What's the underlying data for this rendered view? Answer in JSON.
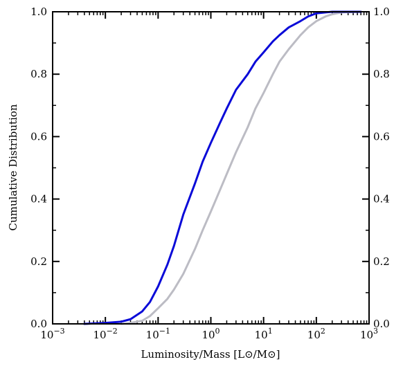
{
  "chart_data": {
    "type": "line",
    "title": "",
    "xlabel": "Luminosity/Mass [L⊙/M⊙]",
    "ylabel": "Cumulative Distribution",
    "xscale": "log",
    "xlim": [
      0.001,
      1000
    ],
    "ylim": [
      0.0,
      1.0
    ],
    "grid": false,
    "legend": "none",
    "x_ticks": [
      {
        "base": "10",
        "exp": "−3",
        "value": 0.001
      },
      {
        "base": "10",
        "exp": "−2",
        "value": 0.01
      },
      {
        "base": "10",
        "exp": "−1",
        "value": 0.1
      },
      {
        "base": "10",
        "exp": "0",
        "value": 1
      },
      {
        "base": "10",
        "exp": "1",
        "value": 10
      },
      {
        "base": "10",
        "exp": "2",
        "value": 100
      },
      {
        "base": "10",
        "exp": "3",
        "value": 1000
      }
    ],
    "y_ticks": [
      "0.0",
      "0.2",
      "0.4",
      "0.6",
      "0.8",
      "1.0"
    ],
    "series": [
      {
        "color": "#0a0ad8",
        "x": [
          0.004,
          0.01,
          0.02,
          0.03,
          0.05,
          0.07,
          0.1,
          0.15,
          0.2,
          0.3,
          0.5,
          0.7,
          1.0,
          1.5,
          2.0,
          3.0,
          5.0,
          7.0,
          10,
          15,
          20,
          30,
          50,
          70,
          100,
          150,
          200,
          300,
          700
        ],
        "y": [
          0.0,
          0.003,
          0.007,
          0.015,
          0.04,
          0.07,
          0.12,
          0.19,
          0.25,
          0.35,
          0.45,
          0.52,
          0.58,
          0.645,
          0.69,
          0.75,
          0.8,
          0.84,
          0.87,
          0.905,
          0.925,
          0.95,
          0.97,
          0.985,
          0.995,
          0.998,
          1.0,
          1.0,
          1.0
        ]
      },
      {
        "color": "#bcbcc4",
        "x": [
          0.02,
          0.03,
          0.05,
          0.07,
          0.1,
          0.15,
          0.2,
          0.3,
          0.5,
          0.7,
          1.0,
          1.5,
          2.0,
          3.0,
          5.0,
          7.0,
          10,
          15,
          20,
          30,
          50,
          70,
          100,
          150,
          200,
          300,
          700
        ],
        "y": [
          0.0,
          0.003,
          0.01,
          0.025,
          0.05,
          0.08,
          0.11,
          0.16,
          0.24,
          0.3,
          0.36,
          0.43,
          0.48,
          0.55,
          0.63,
          0.69,
          0.74,
          0.8,
          0.84,
          0.88,
          0.925,
          0.95,
          0.97,
          0.985,
          0.992,
          0.998,
          1.0
        ]
      }
    ]
  }
}
